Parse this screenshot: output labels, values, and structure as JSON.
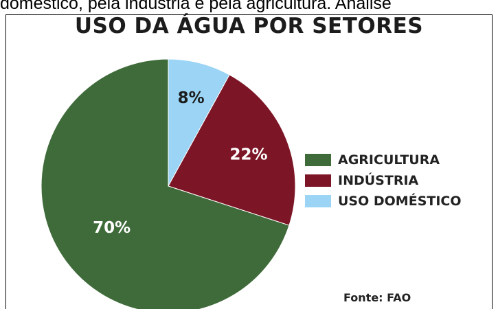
{
  "header_text": "doméstico, pela indústria e pela agricultura. Analise",
  "chart_data": {
    "type": "pie",
    "title": "USO DA ÁGUA POR SETORES",
    "source": "Fonte: FAO",
    "legend_position": "right",
    "slices": [
      {
        "label": "AGRICULTURA",
        "value": 70,
        "value_label": "70%",
        "color": "#3f6b3a"
      },
      {
        "label": "INDÚSTRIA",
        "value": 22,
        "value_label": "22%",
        "color": "#7c1526"
      },
      {
        "label": "USO DOMÉSTICO",
        "value": 8,
        "value_label": "8%",
        "color": "#9bd4f5"
      }
    ]
  }
}
